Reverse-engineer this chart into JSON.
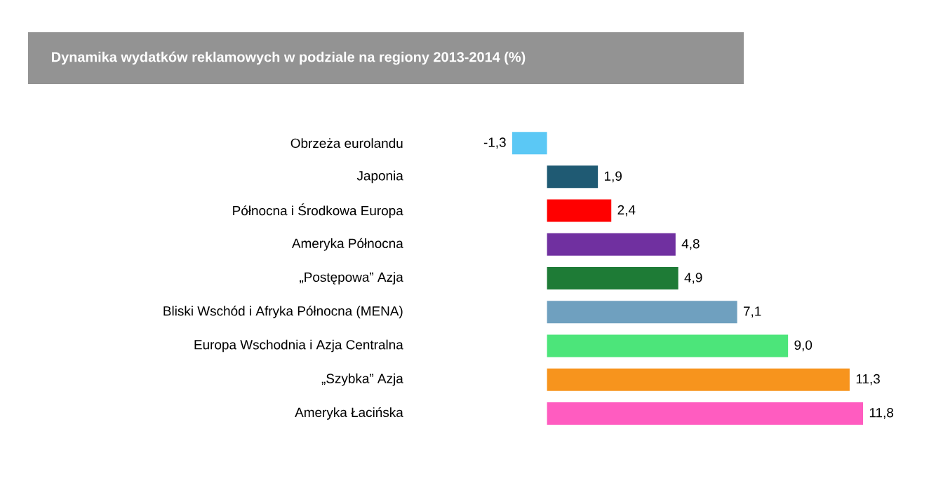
{
  "chart_data": {
    "type": "bar",
    "orientation": "horizontal",
    "title": "Dynamika wydatków reklamowych w podziale na regiony 2013-2014 (%)",
    "categories": [
      "Obrzeża eurolandu",
      "Japonia",
      "Północna i Środkowa Europa",
      "Ameryka Północna",
      "„Postępowa” Azja",
      "Bliski Wschód i Afryka Północna (MENA)",
      "Europa Wschodnia i Azja Centralna",
      "„Szybka” Azja",
      "Ameryka Łacińska"
    ],
    "values": [
      -1.3,
      1.9,
      2.4,
      4.8,
      4.9,
      7.1,
      9.0,
      11.3,
      11.8
    ],
    "colors": [
      "#5bc8f5",
      "#1f5a73",
      "#ff0000",
      "#7030a0",
      "#1e7b36",
      "#6fa0bf",
      "#4ce57a",
      "#f7941d",
      "#ff5cc0"
    ],
    "value_labels": [
      "-1,3",
      "1,9",
      "2,4",
      "4,8",
      "4,9",
      "7,1",
      "9,0",
      "11,3",
      "11,8"
    ]
  }
}
